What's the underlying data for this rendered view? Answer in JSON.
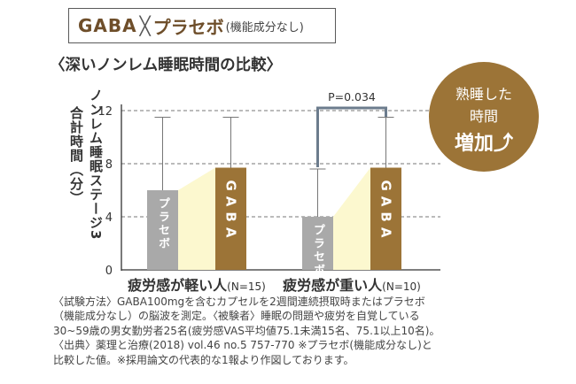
{
  "header": {
    "gaba": "GABA",
    "cross": "╳",
    "placebo": "プラセボ",
    "placebo_note": "(機能成分なし)"
  },
  "title": "〈深いノンレム睡眠時間の比較〉",
  "ylabel_line1": "ノンレム睡眠ステージ3",
  "ylabel_line2": "合計時間（分）",
  "badge": {
    "line1": "熟睡した",
    "line2": "時間",
    "line3": "増加⤴"
  },
  "chart_data": {
    "type": "bar",
    "categories": [
      "疲労感が軽い人",
      "疲労感が重い人"
    ],
    "category_notes": [
      "(N=15)",
      "(N=10)"
    ],
    "series": [
      {
        "name": "プラセボ",
        "values": [
          6.0,
          4.0
        ],
        "error_upper": [
          11.5,
          7.6
        ],
        "error_lower": [
          null,
          null
        ],
        "color": "#a9a9a9"
      },
      {
        "name": "GABA",
        "values": [
          7.7,
          7.7
        ],
        "error_upper": [
          11.5,
          11.5
        ],
        "color": "#9c7437"
      }
    ],
    "ylim": [
      0,
      13
    ],
    "yticks": [
      "12",
      "8",
      "4",
      "0"
    ],
    "grid": "dashed",
    "annotation": "P=0.034",
    "bracket_group": "疲労感が重い人"
  },
  "footnote": [
    "〈試験方法〉GABA100mgを含むカプセルを2週間連続摂取時またはプラセボ",
    "（機能成分なし）の脳波を測定。〈被験者〉睡眠の問題や疲労を自覚している",
    "30~59歳の男女勤労者25名(疲労感VAS平均値75.1未満15名、75.1以上10名)。",
    "〈出典〉薬理と治療(2018)  vol.46  no.5  757-770   ※プラセボ(機能成分なし)と",
    "比較した値。※採用論文の代表的な1報より作図しております。"
  ],
  "colors": {
    "gaba_brown": "#9c7437",
    "placebo_gray": "#a9a9a9",
    "highlight_yellow": "#fcf8cf",
    "bracket_blue": "#6c7c8d"
  }
}
